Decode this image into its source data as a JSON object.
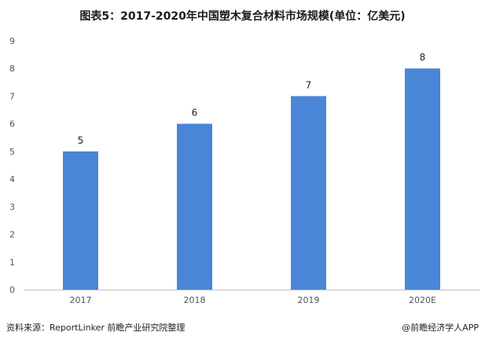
{
  "chart_data": {
    "type": "bar",
    "title": "图表5：2017-2020年中国塑木复合材料市场规模(单位：亿美元)",
    "categories": [
      "2017",
      "2018",
      "2019",
      "2020E"
    ],
    "values": [
      5,
      6,
      7,
      8
    ],
    "ylim": [
      0,
      9
    ],
    "yticks": [
      "0",
      "1",
      "2",
      "3",
      "4",
      "5",
      "6",
      "7",
      "8",
      "9"
    ],
    "xlabel": "",
    "ylabel": "",
    "grid": false,
    "bar_color": "#4a86d8"
  },
  "footer": {
    "source": "资料来源：ReportLinker 前瞻产业研究院整理",
    "brand": "@前瞻经济学人APP"
  }
}
